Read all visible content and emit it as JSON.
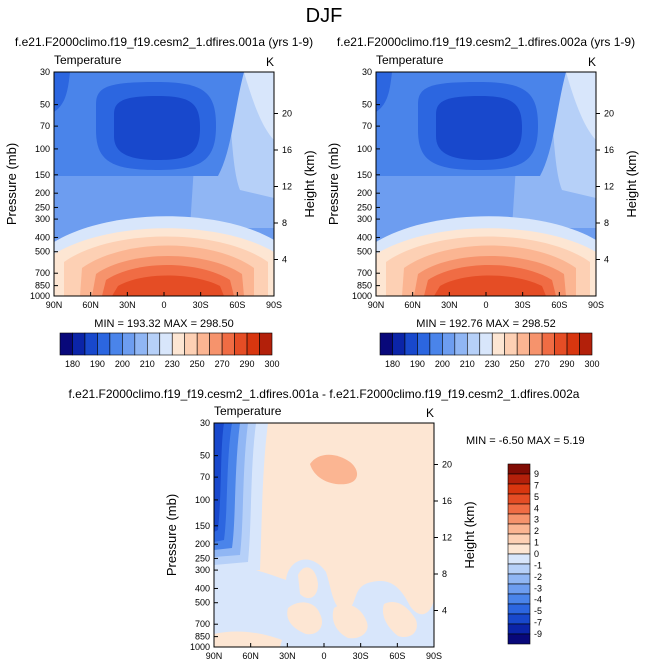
{
  "figure_title": "DJF",
  "colors": {
    "neg": [
      "#08087a",
      "#0b24a8",
      "#1848cc",
      "#2c66e0",
      "#4a84ea",
      "#6d9df0",
      "#90b6f4",
      "#b6d0f8",
      "#d8e6fb"
    ],
    "pos": [
      "#fde6d3",
      "#fdd0b4",
      "#fbb592",
      "#f6936c",
      "#f06c44",
      "#e54d25",
      "#d8360f",
      "#b3200a",
      "#800c04"
    ]
  },
  "chart_data": [
    {
      "type": "contour",
      "title": "f.e21.F2000climo.f19_f19.cesm2_1.dfires.001a (yrs 1-9)",
      "left_title": "Temperature",
      "units": "K",
      "ylabel": "Pressure (mb)",
      "ylabel_right": "Height (km)",
      "x_ticks": [
        "90N",
        "60N",
        "30N",
        "0",
        "30S",
        "60S",
        "90S"
      ],
      "x_values": [
        90,
        60,
        30,
        0,
        -30,
        -60,
        -90
      ],
      "y_ticks": [
        "30",
        "50",
        "70",
        "100",
        "150",
        "200",
        "250",
        "300",
        "400",
        "500",
        "700",
        "850",
        "1000"
      ],
      "y_values": [
        30,
        50,
        70,
        100,
        150,
        200,
        250,
        300,
        400,
        500,
        700,
        850,
        1000
      ],
      "height_ticks": [
        "20",
        "16",
        "12",
        "8",
        "4"
      ],
      "height_values": [
        20,
        16,
        12,
        8,
        4
      ],
      "min_max_text": "MIN = 193.32   MAX = 298.50",
      "min": 193.32,
      "max": 298.5
    },
    {
      "type": "contour",
      "title": "f.e21.F2000climo.f19_f19.cesm2_1.dfires.002a (yrs 1-9)",
      "left_title": "Temperature",
      "units": "K",
      "ylabel": "Pressure (mb)",
      "ylabel_right": "Height (km)",
      "x_ticks": [
        "90N",
        "60N",
        "30N",
        "0",
        "30S",
        "60S",
        "90S"
      ],
      "x_values": [
        90,
        60,
        30,
        0,
        -30,
        -60,
        -90
      ],
      "y_ticks": [
        "30",
        "50",
        "70",
        "100",
        "150",
        "200",
        "250",
        "300",
        "400",
        "500",
        "700",
        "850",
        "1000"
      ],
      "y_values": [
        30,
        50,
        70,
        100,
        150,
        200,
        250,
        300,
        400,
        500,
        700,
        850,
        1000
      ],
      "height_ticks": [
        "20",
        "16",
        "12",
        "8",
        "4"
      ],
      "height_values": [
        20,
        16,
        12,
        8,
        4
      ],
      "min_max_text": "MIN = 192.76   MAX = 298.52",
      "min": 192.76,
      "max": 298.52
    },
    {
      "type": "contour",
      "title": "f.e21.F2000climo.f19_f19.cesm2_1.dfires.001a - f.e21.F2000climo.f19_f19.cesm2_1.dfires.002a",
      "left_title": "Temperature",
      "units": "K",
      "ylabel": "Pressure (mb)",
      "ylabel_right": "Height (km)",
      "x_ticks": [
        "90N",
        "60N",
        "30N",
        "0",
        "30S",
        "60S",
        "90S"
      ],
      "x_values": [
        90,
        60,
        30,
        0,
        -30,
        -60,
        -90
      ],
      "y_ticks": [
        "30",
        "50",
        "70",
        "100",
        "150",
        "200",
        "250",
        "300",
        "400",
        "500",
        "700",
        "850",
        "1000"
      ],
      "y_values": [
        30,
        50,
        70,
        100,
        150,
        200,
        250,
        300,
        400,
        500,
        700,
        850,
        1000
      ],
      "height_ticks": [
        "20",
        "16",
        "12",
        "8",
        "4"
      ],
      "height_values": [
        20,
        16,
        12,
        8,
        4
      ],
      "min_max_text": "MIN = -6.50  MAX =  5.19",
      "min": -6.5,
      "max": 5.19
    }
  ],
  "colorbars": {
    "temperature_labels": [
      "180",
      "190",
      "200",
      "210",
      "230",
      "250",
      "270",
      "290",
      "300"
    ],
    "difference_labels": [
      "9",
      "7",
      "5",
      "4",
      "3",
      "2",
      "1",
      "0",
      "-1",
      "-2",
      "-3",
      "-4",
      "-5",
      "-7",
      "-9"
    ]
  }
}
